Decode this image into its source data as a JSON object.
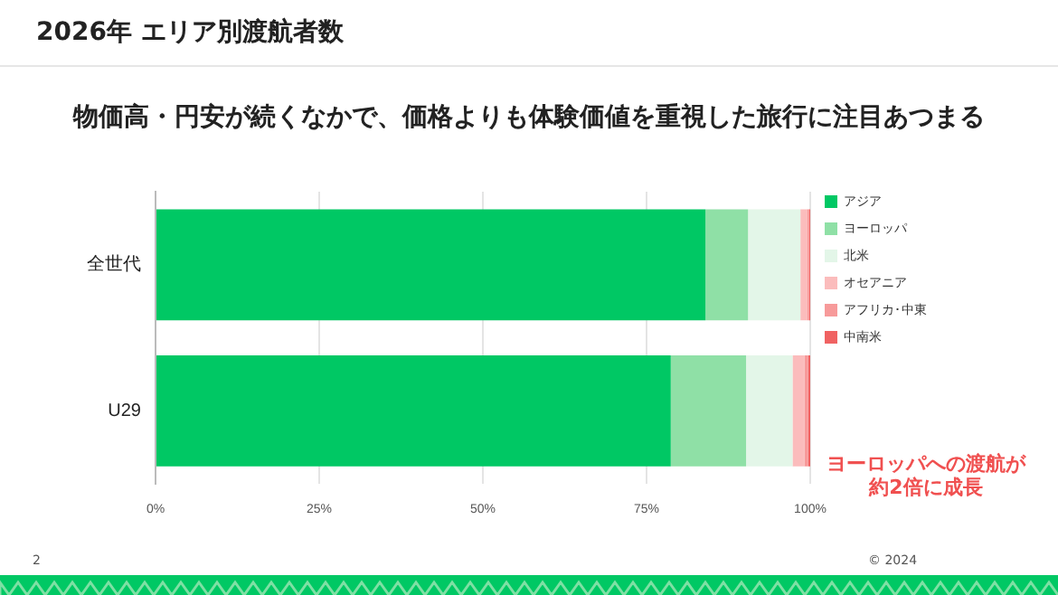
{
  "chart_data": {
    "type": "bar",
    "orientation": "horizontal",
    "stacked": true,
    "title": "2026年 エリア別渡航者数",
    "subtitle": "物価高・円安が続くなかで、価格よりも体験価値を重視した旅行に注目あつまる",
    "categories": [
      "全世代",
      "U29"
    ],
    "series": [
      {
        "name": "アジア",
        "color": "#00c864",
        "values": [
          84,
          78.7
        ]
      },
      {
        "name": "ヨーロッパ",
        "color": "#8fe0a6",
        "values": [
          6.5,
          11.5
        ]
      },
      {
        "name": "北米",
        "color": "#e3f6e8",
        "values": [
          8,
          7.1
        ]
      },
      {
        "name": "オセアニア",
        "color": "#fbbcbc",
        "values": [
          1,
          1.8
        ]
      },
      {
        "name": "アフリカ･中東",
        "color": "#f79a9a",
        "values": [
          0.3,
          0.6
        ]
      },
      {
        "name": "中南米",
        "color": "#f06262",
        "values": [
          0.2,
          0.3
        ]
      }
    ],
    "xlim": [
      0,
      100
    ],
    "xticks": [
      {
        "value": 0,
        "label": "0%"
      },
      {
        "value": 25,
        "label": "25%"
      },
      {
        "value": 50,
        "label": "50%"
      },
      {
        "value": 75,
        "label": "75%"
      },
      {
        "value": 100,
        "label": "100%"
      }
    ],
    "grid": "x",
    "legend": "top right",
    "annotations": [
      "ヨーロッパへの渡航が約2倍に成長",
      "2",
      "© 2024"
    ]
  }
}
